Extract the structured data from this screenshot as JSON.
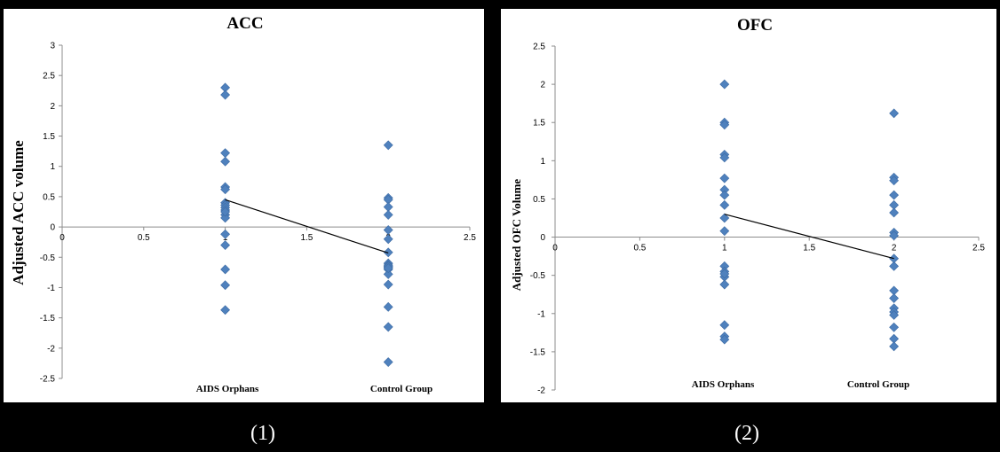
{
  "captions": [
    "(1)",
    "(2)"
  ],
  "chart_data": [
    {
      "type": "scatter",
      "title": "ACC",
      "ylabel": "Adjusted ACC volume",
      "xlabel": "",
      "xlim": [
        0,
        2.5
      ],
      "ylim": [
        -2.5,
        3
      ],
      "xticks": [
        "0",
        "0.5",
        "1",
        "1.5",
        "2",
        "2.5"
      ],
      "yticks": [
        "3",
        "2.5",
        "2",
        "1.5",
        "1",
        "0.5",
        "0",
        "-0.5",
        "-1",
        "-1.5",
        "-2",
        "-2.5"
      ],
      "group_labels": [
        "AIDS Orphans",
        "Control Group"
      ],
      "marker_color": "#4F81BD",
      "series": [
        {
          "x": [
            1,
            1,
            1,
            1,
            1,
            1,
            1,
            1,
            1,
            1,
            1,
            1,
            1,
            1,
            1,
            1,
            1,
            1
          ],
          "y": [
            2.3,
            2.18,
            1.22,
            1.08,
            0.66,
            0.62,
            0.4,
            0.36,
            0.32,
            0.28,
            0.2,
            0.15,
            -0.12,
            -0.3,
            -0.7,
            -0.96,
            -1.37,
            0.25
          ]
        },
        {
          "x": [
            2,
            2,
            2,
            2,
            2,
            2,
            2,
            2,
            2,
            2,
            2,
            2,
            2,
            2,
            2,
            2,
            2,
            2,
            2
          ],
          "y": [
            1.35,
            0.48,
            0.45,
            0.33,
            0.2,
            -0.05,
            -0.2,
            -0.42,
            -0.6,
            -0.63,
            -0.66,
            -0.7,
            -0.78,
            -0.95,
            -1.32,
            -1.65,
            -2.23,
            -0.65,
            -0.68
          ]
        }
      ],
      "trend_line": {
        "x": [
          1,
          2
        ],
        "y": [
          0.45,
          -0.43
        ],
        "color": "#000000"
      }
    },
    {
      "type": "scatter",
      "title": "OFC",
      "ylabel": "Adjusted OFC Volume",
      "xlabel": "",
      "xlim": [
        0,
        2.5
      ],
      "ylim": [
        -2,
        2.5
      ],
      "xticks": [
        "0",
        "0.5",
        "1",
        "1.5",
        "2",
        "2.5"
      ],
      "yticks": [
        "2.5",
        "2",
        "1.5",
        "1",
        "0.5",
        "0",
        "-0.5",
        "-1",
        "-1.5",
        "-2"
      ],
      "group_labels": [
        "AIDS Orphans",
        "Control Group"
      ],
      "marker_color": "#4F81BD",
      "series": [
        {
          "x": [
            1,
            1,
            1,
            1,
            1,
            1,
            1,
            1,
            1,
            1,
            1,
            1,
            1,
            1,
            1,
            1,
            1,
            1,
            1
          ],
          "y": [
            2.0,
            1.5,
            1.47,
            1.08,
            1.04,
            0.77,
            0.62,
            0.55,
            0.42,
            0.25,
            0.08,
            -0.38,
            -0.45,
            -0.52,
            -0.62,
            -1.15,
            -1.3,
            -1.34,
            -0.48
          ]
        },
        {
          "x": [
            2,
            2,
            2,
            2,
            2,
            2,
            2,
            2,
            2,
            2,
            2,
            2,
            2,
            2,
            2,
            2,
            2,
            2
          ],
          "y": [
            1.62,
            0.78,
            0.74,
            0.55,
            0.42,
            0.32,
            0.06,
            0.02,
            -0.38,
            -0.7,
            -0.8,
            -0.93,
            -0.98,
            -1.02,
            -1.18,
            -1.33,
            -1.43,
            -0.28
          ]
        }
      ],
      "trend_line": {
        "x": [
          1,
          2
        ],
        "y": [
          0.3,
          -0.28
        ],
        "color": "#000000"
      }
    }
  ]
}
